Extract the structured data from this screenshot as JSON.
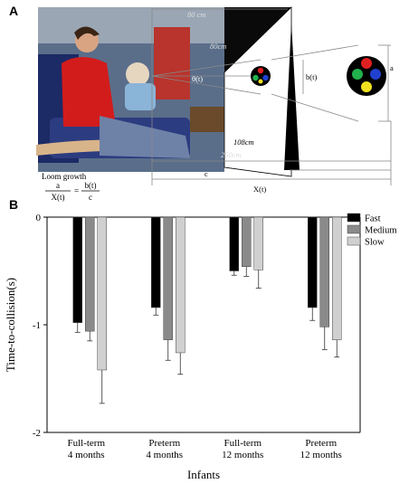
{
  "panel_a": {
    "letter": "A",
    "labels": {
      "dist_top": "80 cm",
      "dist_mid": "80cm",
      "theta": "θ(t)",
      "b": "b(t)",
      "a": "a",
      "dist_low": "108cm",
      "dist_floor": "250cm",
      "c": "c",
      "x": "X(t)"
    },
    "formula": {
      "title": "Loom growth",
      "lhs_num": "a",
      "lhs_den": "X(t)",
      "eq": "=",
      "rhs_num": "b(t)",
      "rhs_den": "c"
    },
    "colors": {
      "sky_dark": "#0a0a0a",
      "wall": "#ffffff",
      "disc_red": "#e02020",
      "disc_green": "#22b14c",
      "disc_blue": "#2040d0",
      "disc_yellow": "#f0e020"
    }
  },
  "panel_b": {
    "letter": "B"
  },
  "chart_data": {
    "type": "bar",
    "xlabel": "Infants",
    "ylabel": "Time-to-collision(s)",
    "ylim": [
      -2,
      0
    ],
    "yticks": [
      0,
      -1,
      -2
    ],
    "categories": [
      [
        "Full-term",
        "4 months"
      ],
      [
        "Preterm",
        "4 months"
      ],
      [
        "Full-term",
        "12 months"
      ],
      [
        "Preterm",
        "12 months"
      ]
    ],
    "series": [
      {
        "name": "Fast",
        "color": "#000000",
        "values": [
          -0.98,
          -0.84,
          -0.5,
          -0.84
        ],
        "errors": [
          0.09,
          0.07,
          0.04,
          0.12
        ]
      },
      {
        "name": "Medium",
        "color": "#8a8a8a",
        "values": [
          -1.06,
          -1.14,
          -0.46,
          -1.02
        ],
        "errors": [
          0.09,
          0.19,
          0.09,
          0.21
        ]
      },
      {
        "name": "Slow",
        "color": "#d0d0d0",
        "values": [
          -1.42,
          -1.26,
          -0.49,
          -1.14
        ],
        "errors": [
          0.31,
          0.2,
          0.17,
          0.16
        ]
      }
    ],
    "legend": "top-right",
    "grid": false
  }
}
